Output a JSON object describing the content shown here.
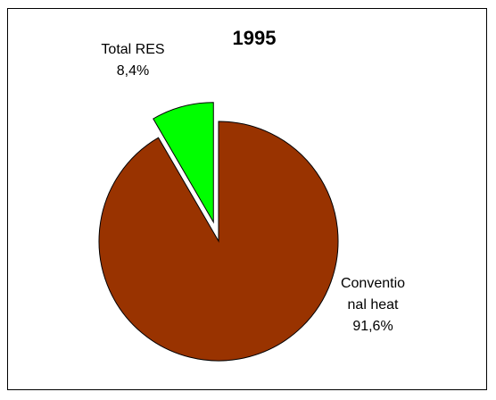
{
  "chart_data": {
    "type": "pie",
    "title": "1995",
    "series": [
      {
        "name": "",
        "values": [
          {
            "label": "Total RES",
            "label_lines": [
              "Total RES"
            ],
            "value_text": "8,4%",
            "value": 8.4,
            "color": "#00ff00",
            "exploded": true
          },
          {
            "label": "Conventional heat",
            "label_lines": [
              "Conventio",
              "nal heat"
            ],
            "value_text": "91,6%",
            "value": 91.6,
            "color": "#993300",
            "exploded": false
          }
        ]
      }
    ],
    "legend": "none",
    "grid": false
  }
}
